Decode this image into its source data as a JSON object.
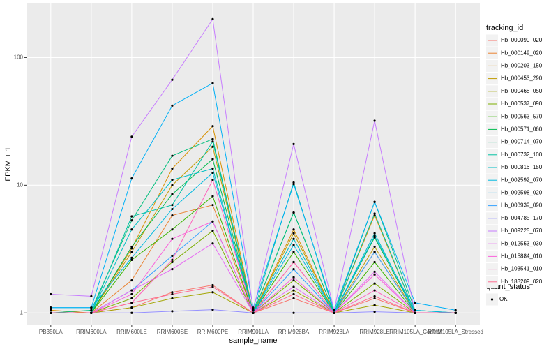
{
  "chart_data": {
    "type": "line",
    "x_label": "sample_name",
    "y_label": "FPKM + 1",
    "categories": [
      "PB350LA",
      "RRIM600LA",
      "RRIM600LE",
      "RRIM600SE",
      "RRIM600PE",
      "RRIM901LA",
      "RRIM928BA",
      "RRIM928LA",
      "RRIM928LE",
      "RRIM105LA_Control",
      "RRIM105LA_Stressed"
    ],
    "log_scale": true,
    "grid": true,
    "ylim": [
      0.81,
      265
    ],
    "yticks": [
      1,
      10,
      100
    ],
    "legend_title": "tracking_id",
    "legend_position": "right",
    "point_legend_title": "quant_status",
    "point_legend_label": "OK",
    "point_color": "#000000",
    "series": [
      {
        "name": "Hb_000090_020",
        "color": "#F8766D",
        "values": [
          1.0,
          1.0,
          1.1,
          1.45,
          1.65,
          1.0,
          1.3,
          1.0,
          1.3,
          1.0,
          1.0
        ]
      },
      {
        "name": "Hb_000149_020",
        "color": "#EA8331",
        "values": [
          1.0,
          1.0,
          1.8,
          5.8,
          7.0,
          1.0,
          2.5,
          1.0,
          3.0,
          1.0,
          1.0
        ]
      },
      {
        "name": "Hb_000203_150",
        "color": "#D89000",
        "values": [
          1.05,
          1.0,
          3.2,
          13.5,
          29,
          1.0,
          4.5,
          1.0,
          5.8,
          1.0,
          1.0
        ]
      },
      {
        "name": "Hb_000453_290",
        "color": "#C09B00",
        "values": [
          1.0,
          1.0,
          3.0,
          10,
          20,
          1.0,
          4.2,
          1.0,
          3.3,
          1.0,
          1.0
        ]
      },
      {
        "name": "Hb_000468_050",
        "color": "#A3A500",
        "values": [
          1.0,
          1.0,
          1.1,
          1.3,
          1.45,
          1.0,
          1.5,
          1.0,
          1.15,
          1.0,
          1.0
        ]
      },
      {
        "name": "Hb_000537_090",
        "color": "#7CAE00",
        "values": [
          1.0,
          1.0,
          1.3,
          2.5,
          4.4,
          1.0,
          1.8,
          1.0,
          1.7,
          1.0,
          1.0
        ]
      },
      {
        "name": "Hb_000563_570",
        "color": "#39B600",
        "values": [
          1.0,
          1.0,
          2.6,
          4.5,
          8.2,
          1.0,
          3.0,
          1.0,
          2.5,
          1.0,
          1.0
        ]
      },
      {
        "name": "Hb_000571_060",
        "color": "#00BB4E",
        "values": [
          1.0,
          1.0,
          3.3,
          8.5,
          16,
          1.0,
          6.1,
          1.0,
          3.9,
          1.0,
          1.0
        ]
      },
      {
        "name": "Hb_000714_070",
        "color": "#00BF7D",
        "values": [
          1.0,
          1.05,
          5.3,
          17,
          23,
          1.0,
          6.1,
          1.0,
          7.4,
          1.05,
          1.0
        ]
      },
      {
        "name": "Hb_000732_100",
        "color": "#00C1A3",
        "values": [
          1.0,
          1.0,
          5.7,
          7.0,
          22,
          1.0,
          10.5,
          1.0,
          6.0,
          1.0,
          1.0
        ]
      },
      {
        "name": "Hb_000816_150",
        "color": "#00BFC4",
        "values": [
          1.0,
          1.0,
          4.5,
          11,
          13.5,
          1.0,
          3.8,
          1.0,
          4.2,
          1.0,
          1.0
        ]
      },
      {
        "name": "Hb_002592_070",
        "color": "#00BAE0",
        "values": [
          1.1,
          1.1,
          2.7,
          6.5,
          12.5,
          1.0,
          3.4,
          1.0,
          4.0,
          1.05,
          1.0
        ]
      },
      {
        "name": "Hb_002598_020",
        "color": "#00B0F6",
        "values": [
          1.1,
          1.1,
          11.3,
          42,
          63,
          1.1,
          10.2,
          1.05,
          7.4,
          1.2,
          1.05
        ]
      },
      {
        "name": "Hb_003939_090",
        "color": "#35A2FF",
        "values": [
          1.0,
          1.0,
          1.5,
          2.8,
          5.2,
          1.0,
          2.2,
          1.0,
          3.0,
          1.0,
          1.0
        ]
      },
      {
        "name": "Hb_004785_170",
        "color": "#9590FF",
        "values": [
          1.0,
          1.0,
          1.0,
          1.03,
          1.06,
          1.0,
          1.0,
          1.0,
          1.02,
          1.0,
          1.0
        ]
      },
      {
        "name": "Hb_009225_070",
        "color": "#C77CFF",
        "values": [
          1.4,
          1.35,
          24,
          67,
          200,
          1.05,
          21,
          1.05,
          32,
          1.0,
          1.0
        ]
      },
      {
        "name": "Hb_012553_030",
        "color": "#E76BF3",
        "values": [
          1.0,
          1.0,
          1.5,
          2.2,
          3.5,
          1.0,
          1.6,
          1.0,
          2.1,
          1.0,
          1.0
        ]
      },
      {
        "name": "Hb_015884_010",
        "color": "#FA62DB",
        "values": [
          1.0,
          1.0,
          1.4,
          3.8,
          5.2,
          1.0,
          1.9,
          1.0,
          2.0,
          1.0,
          1.0
        ]
      },
      {
        "name": "Hb_103541_010",
        "color": "#FF62BC",
        "values": [
          1.0,
          1.0,
          1.2,
          2.6,
          11,
          1.0,
          2.5,
          1.0,
          1.5,
          1.0,
          1.0
        ]
      },
      {
        "name": "Hb_183209_020",
        "color": "#FF6C91",
        "values": [
          1.0,
          1.0,
          1.2,
          1.4,
          1.6,
          1.0,
          1.4,
          1.0,
          1.35,
          1.0,
          1.0
        ]
      }
    ]
  }
}
